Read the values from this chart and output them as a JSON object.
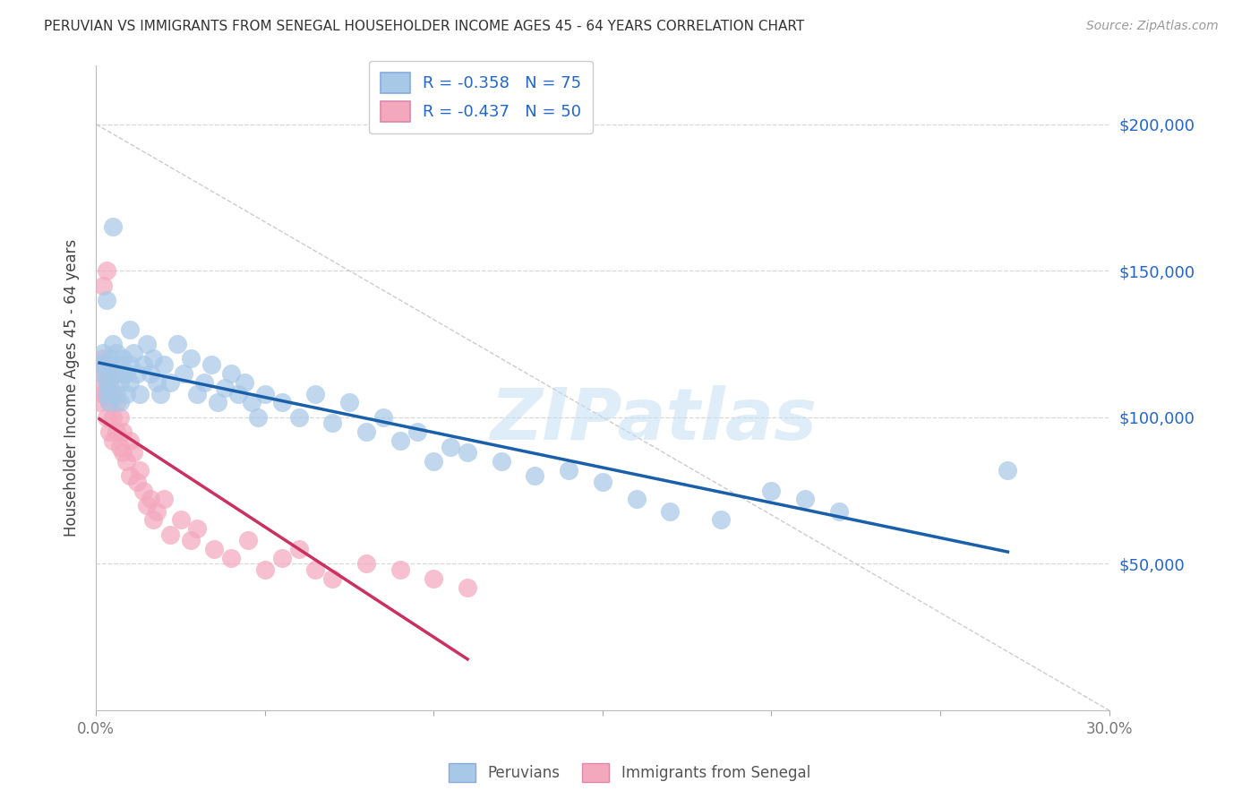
{
  "title": "PERUVIAN VS IMMIGRANTS FROM SENEGAL HOUSEHOLDER INCOME AGES 45 - 64 YEARS CORRELATION CHART",
  "source": "Source: ZipAtlas.com",
  "ylabel": "Householder Income Ages 45 - 64 years",
  "xlim": [
    0.0,
    0.3
  ],
  "ylim": [
    0,
    220000
  ],
  "xticks": [
    0.0,
    0.05,
    0.1,
    0.15,
    0.2,
    0.25,
    0.3
  ],
  "xticklabels": [
    "0.0%",
    "",
    "",
    "",
    "",
    "",
    "30.0%"
  ],
  "yticks": [
    0,
    50000,
    100000,
    150000,
    200000
  ],
  "right_yticklabels": [
    "",
    "$50,000",
    "$100,000",
    "$150,000",
    "$200,000"
  ],
  "legend1_label": "R = -0.358   N = 75",
  "legend2_label": "R = -0.437   N = 50",
  "peruvian_color": "#a8c8e8",
  "senegal_color": "#f4a8be",
  "peruvian_line_color": "#1a5faa",
  "senegal_line_color": "#cc3060",
  "watermark": "ZIPatlas",
  "bg_color": "#ffffff",
  "grid_color": "#d8d8d8",
  "title_color": "#333333",
  "source_color": "#999999",
  "ylabel_color": "#444444",
  "tick_color": "#777777",
  "right_tick_color": "#2266cc",
  "legend_text_color": "#2266cc",
  "bottom_legend_color": "#555555",
  "watermark_color": "#c5dff5",
  "peru_x": [
    0.001,
    0.002,
    0.002,
    0.003,
    0.003,
    0.003,
    0.004,
    0.004,
    0.004,
    0.005,
    0.005,
    0.005,
    0.006,
    0.006,
    0.006,
    0.007,
    0.007,
    0.007,
    0.008,
    0.008,
    0.009,
    0.009,
    0.01,
    0.01,
    0.01,
    0.011,
    0.012,
    0.013,
    0.014,
    0.015,
    0.016,
    0.017,
    0.018,
    0.019,
    0.02,
    0.022,
    0.024,
    0.026,
    0.028,
    0.03,
    0.032,
    0.034,
    0.036,
    0.038,
    0.04,
    0.042,
    0.044,
    0.046,
    0.048,
    0.05,
    0.055,
    0.06,
    0.065,
    0.07,
    0.075,
    0.08,
    0.085,
    0.09,
    0.095,
    0.1,
    0.105,
    0.11,
    0.12,
    0.13,
    0.14,
    0.15,
    0.16,
    0.17,
    0.185,
    0.2,
    0.21,
    0.22,
    0.27,
    0.005,
    0.003
  ],
  "peru_y": [
    118000,
    115000,
    122000,
    108000,
    112000,
    118000,
    105000,
    110000,
    120000,
    115000,
    125000,
    108000,
    115000,
    122000,
    108000,
    118000,
    112000,
    105000,
    115000,
    120000,
    108000,
    115000,
    130000,
    118000,
    112000,
    122000,
    115000,
    108000,
    118000,
    125000,
    115000,
    120000,
    112000,
    108000,
    118000,
    112000,
    125000,
    115000,
    120000,
    108000,
    112000,
    118000,
    105000,
    110000,
    115000,
    108000,
    112000,
    105000,
    100000,
    108000,
    105000,
    100000,
    108000,
    98000,
    105000,
    95000,
    100000,
    92000,
    95000,
    85000,
    90000,
    88000,
    85000,
    80000,
    82000,
    78000,
    72000,
    68000,
    65000,
    75000,
    72000,
    68000,
    82000,
    165000,
    140000
  ],
  "sene_x": [
    0.001,
    0.001,
    0.002,
    0.002,
    0.002,
    0.003,
    0.003,
    0.003,
    0.004,
    0.004,
    0.004,
    0.005,
    0.005,
    0.005,
    0.006,
    0.006,
    0.007,
    0.007,
    0.008,
    0.008,
    0.009,
    0.01,
    0.01,
    0.011,
    0.012,
    0.013,
    0.014,
    0.015,
    0.016,
    0.017,
    0.018,
    0.02,
    0.022,
    0.025,
    0.028,
    0.03,
    0.035,
    0.04,
    0.045,
    0.05,
    0.055,
    0.06,
    0.065,
    0.07,
    0.08,
    0.09,
    0.1,
    0.11,
    0.003,
    0.002
  ],
  "sene_y": [
    112000,
    105000,
    120000,
    108000,
    118000,
    115000,
    100000,
    108000,
    112000,
    105000,
    95000,
    108000,
    100000,
    92000,
    105000,
    95000,
    100000,
    90000,
    95000,
    88000,
    85000,
    92000,
    80000,
    88000,
    78000,
    82000,
    75000,
    70000,
    72000,
    65000,
    68000,
    72000,
    60000,
    65000,
    58000,
    62000,
    55000,
    52000,
    58000,
    48000,
    52000,
    55000,
    48000,
    45000,
    50000,
    48000,
    45000,
    42000,
    150000,
    145000
  ]
}
